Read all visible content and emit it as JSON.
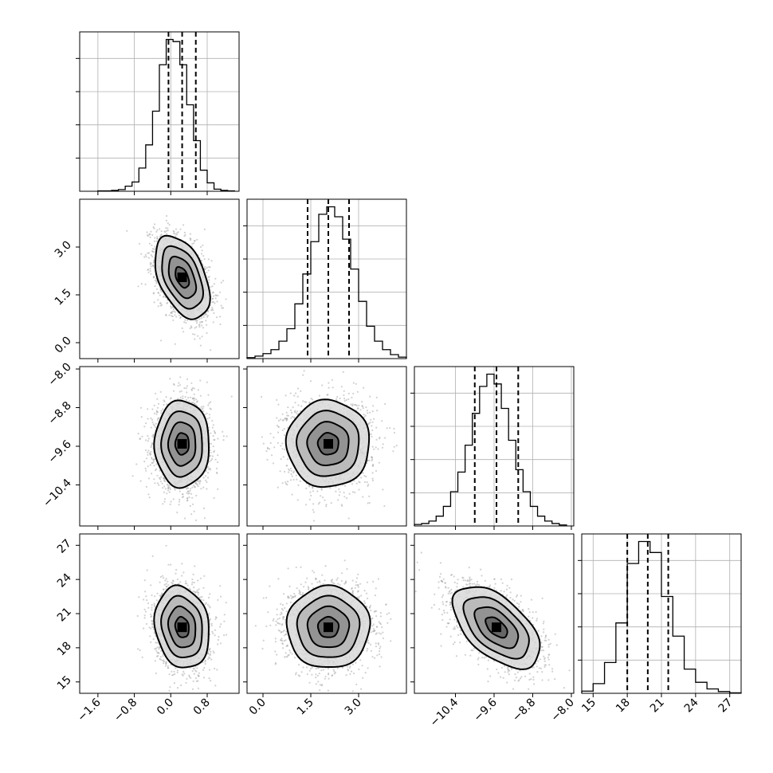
{
  "chart_data": {
    "type": "corner",
    "grid": true,
    "parameters": [
      {
        "range": [
          -2.0,
          1.5
        ],
        "ticks": [
          "-1.6",
          "-0.8",
          "0.0",
          "0.8"
        ],
        "tick_values": [
          -1.6,
          -0.8,
          0.0,
          0.8
        ],
        "quantiles": [
          -0.05,
          0.25,
          0.55
        ],
        "mean": 0.25,
        "std": 0.3
      },
      {
        "range": [
          -0.5,
          4.5
        ],
        "ticks": [
          "0.0",
          "1.5",
          "3.0"
        ],
        "tick_values": [
          0.0,
          1.5,
          3.0
        ],
        "quantiles": [
          1.4,
          2.05,
          2.7
        ],
        "mean": 2.05,
        "std": 0.65
      },
      {
        "range": [
          -11.25,
          -7.95
        ],
        "ticks": [
          "-10.4",
          "-9.6",
          "-8.8",
          "-8.0"
        ],
        "tick_values": [
          -10.4,
          -9.6,
          -8.8,
          -8.0
        ],
        "quantiles": [
          -10.0,
          -9.55,
          -9.1
        ],
        "mean": -9.55,
        "std": 0.45
      },
      {
        "range": [
          14.0,
          28.0
        ],
        "ticks": [
          "15",
          "18",
          "21",
          "24",
          "27"
        ],
        "tick_values": [
          15,
          18,
          21,
          24,
          27
        ],
        "quantiles": [
          18.0,
          19.8,
          21.6
        ],
        "mean": 19.8,
        "std": 1.8
      }
    ],
    "histograms": [
      {
        "parameter": 0,
        "bin_edges": [
          -1.6,
          -1.45,
          -1.3,
          -1.15,
          -1.0,
          -0.85,
          -0.7,
          -0.55,
          -0.4,
          -0.25,
          -0.1,
          0.05,
          0.2,
          0.35,
          0.5,
          0.65,
          0.8,
          0.95,
          1.1,
          1.25,
          1.4
        ],
        "counts": [
          1,
          1,
          2,
          4,
          12,
          22,
          55,
          110,
          190,
          300,
          360,
          355,
          300,
          205,
          120,
          50,
          20,
          5,
          2,
          1
        ]
      },
      {
        "parameter": 1,
        "bin_edges": [
          -0.5,
          -0.25,
          0.0,
          0.25,
          0.5,
          0.75,
          1.0,
          1.25,
          1.5,
          1.75,
          2.0,
          2.25,
          2.5,
          2.75,
          3.0,
          3.25,
          3.5,
          3.75,
          4.0,
          4.25,
          4.5
        ],
        "counts": [
          2,
          5,
          10,
          18,
          35,
          60,
          110,
          170,
          235,
          290,
          305,
          285,
          240,
          180,
          115,
          65,
          35,
          18,
          8,
          3
        ]
      },
      {
        "parameter": 2,
        "bin_edges": [
          -11.25,
          -11.1,
          -10.95,
          -10.8,
          -10.65,
          -10.5,
          -10.35,
          -10.2,
          -10.05,
          -9.9,
          -9.75,
          -9.6,
          -9.45,
          -9.3,
          -9.15,
          -9.0,
          -8.85,
          -8.7,
          -8.55,
          -8.4,
          -8.25,
          -8.1
        ],
        "counts": [
          3,
          5,
          10,
          20,
          40,
          70,
          110,
          165,
          230,
          285,
          310,
          290,
          240,
          175,
          115,
          70,
          40,
          20,
          10,
          5,
          2
        ]
      },
      {
        "parameter": 3,
        "bin_edges": [
          14,
          15,
          16,
          17,
          18,
          19,
          20,
          21,
          22,
          23,
          24,
          25,
          26,
          27,
          28
        ],
        "counts": [
          5,
          22,
          70,
          160,
          295,
          345,
          320,
          220,
          130,
          55,
          25,
          10,
          4,
          1
        ]
      }
    ],
    "pairs": [
      {
        "x": 0,
        "y": 1,
        "correlation": -0.45,
        "n_points": 2200
      },
      {
        "x": 0,
        "y": 2,
        "correlation": 0.0,
        "n_points": 2200
      },
      {
        "x": 1,
        "y": 2,
        "correlation": 0.0,
        "n_points": 2200
      },
      {
        "x": 0,
        "y": 3,
        "correlation": -0.15,
        "n_points": 2200
      },
      {
        "x": 1,
        "y": 3,
        "correlation": 0.0,
        "n_points": 2200
      },
      {
        "x": 2,
        "y": 3,
        "correlation": -0.55,
        "n_points": 2200
      }
    ],
    "contour_levels_sigma": [
      0.5,
      1.0,
      1.5,
      2.0
    ]
  }
}
